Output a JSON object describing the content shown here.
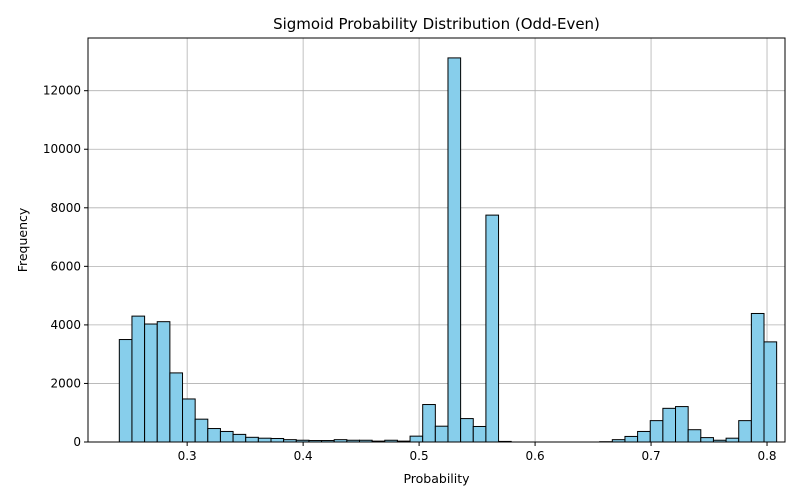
{
  "chart_data": {
    "type": "bar",
    "subtype": "histogram",
    "title": "Sigmoid Probability Distribution (Odd-Even)",
    "xlabel": "Probability",
    "ylabel": "Frequency",
    "xlim": [
      0.2145,
      0.8155
    ],
    "ylim": [
      0,
      13800
    ],
    "xticks": [
      0.3,
      0.4,
      0.5,
      0.6,
      0.7,
      0.8
    ],
    "yticks": [
      0,
      2000,
      4000,
      6000,
      8000,
      10000,
      12000
    ],
    "grid": true,
    "bar_color": "#87ceeb",
    "edge_color": "#000000",
    "bin_start": 0.2415,
    "bin_width": 0.0109,
    "values": [
      3500,
      4300,
      4030,
      4110,
      2360,
      1470,
      780,
      460,
      360,
      260,
      160,
      130,
      120,
      80,
      60,
      50,
      50,
      80,
      60,
      60,
      30,
      60,
      30,
      200,
      1280,
      540,
      13120,
      800,
      530,
      7750,
      20,
      0,
      0,
      0,
      0,
      0,
      0,
      0,
      10,
      80,
      190,
      360,
      730,
      1150,
      1210,
      420,
      150,
      60,
      130,
      730,
      4390,
      3420
    ]
  }
}
